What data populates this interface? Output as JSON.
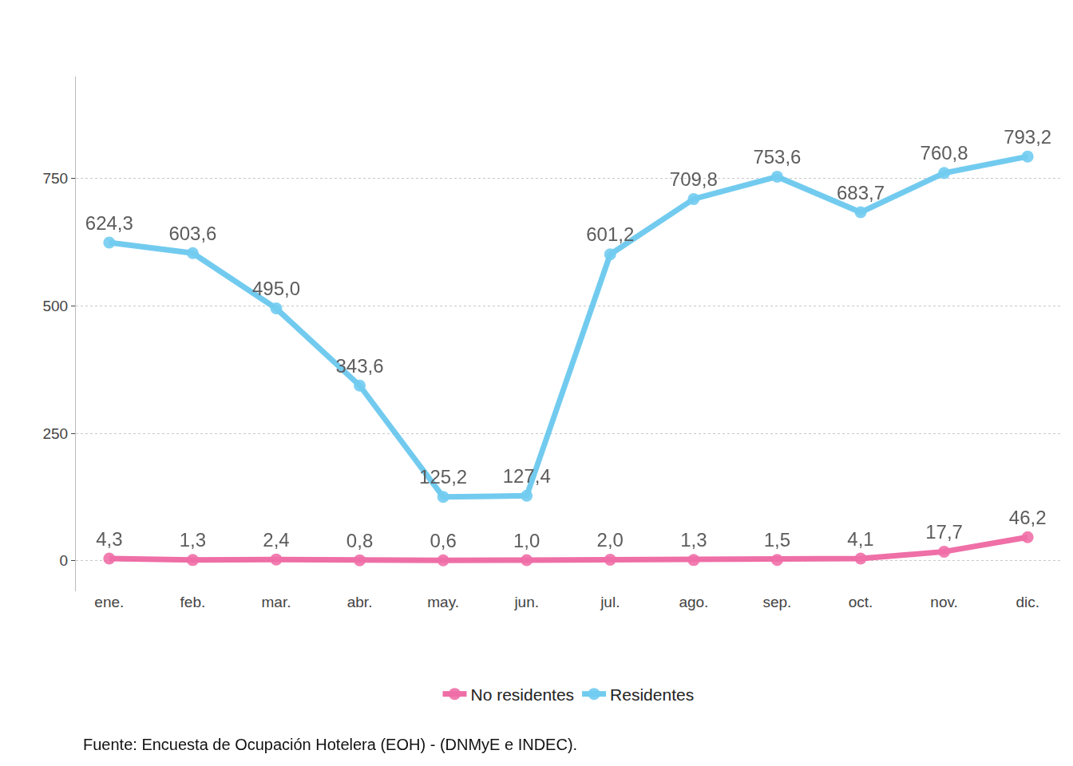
{
  "chart_data": {
    "type": "line",
    "categories": [
      "ene.",
      "feb.",
      "mar.",
      "abr.",
      "may.",
      "jun.",
      "jul.",
      "ago.",
      "sep.",
      "oct.",
      "nov.",
      "dic."
    ],
    "series": [
      {
        "name": "No residentes",
        "color": "#EE5F9E",
        "values": [
          4.3,
          1.3,
          2.4,
          0.8,
          0.6,
          1.0,
          2.0,
          1.3,
          1.5,
          4.1,
          17.7,
          46.2
        ],
        "value_labels": [
          "4,3",
          "1,3",
          "2,4",
          "0,8",
          "0,6",
          "1,0",
          "2,0",
          "1,3",
          "1,5",
          "4,1",
          "17,7",
          "46,2"
        ]
      },
      {
        "name": "Residentes",
        "color": "#62C6EE",
        "values": [
          624.3,
          603.6,
          495.0,
          343.6,
          125.2,
          127.4,
          601.2,
          709.8,
          753.6,
          683.7,
          760.8,
          793.2
        ],
        "value_labels": [
          "624,3",
          "603,6",
          "495,0",
          "343,6",
          "125,2",
          "127,4",
          "601,2",
          "709,8",
          "753,6",
          "683,7",
          "760,8",
          "793,2"
        ]
      }
    ],
    "ylim": [
      -60,
      950
    ],
    "yticks": [
      0,
      250,
      500,
      750
    ],
    "grid": true,
    "legend": "bottom",
    "data_labels": true,
    "marker": "circle",
    "line_style": "solid",
    "source": "Fuente: Encuesta de Ocupación Hotelera (EOH) - (DNMyE e INDEC)."
  }
}
